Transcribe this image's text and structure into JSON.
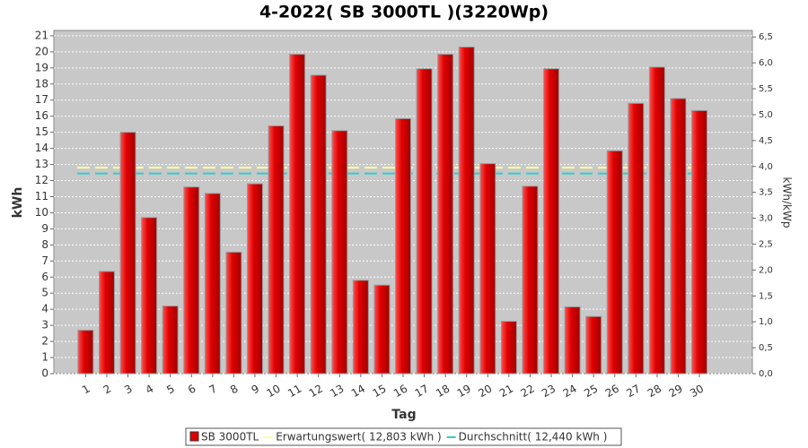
{
  "chart_data": {
    "type": "bar",
    "title": "4-2022( SB 3000TL )(3220Wp)",
    "x_label": "Tag",
    "y_label": "kWh",
    "y2_label": "kWh/kWp",
    "categories": [
      null,
      "1",
      "2",
      "3",
      "4",
      "5",
      "6",
      "7",
      "8",
      "9",
      "10",
      "11",
      "12",
      "13",
      "14",
      "15",
      "16",
      "17",
      "18",
      "19",
      "20",
      "21",
      "22",
      "23",
      "24",
      "25",
      "26",
      "27",
      "28",
      "29",
      "30",
      null,
      null
    ],
    "series": [
      {
        "name": "SB 3000TL",
        "color": "#e00000",
        "values": [
          null,
          2.7,
          6.35,
          15.0,
          9.7,
          4.2,
          11.6,
          11.2,
          7.55,
          11.8,
          15.4,
          19.85,
          18.55,
          15.1,
          5.8,
          5.5,
          15.85,
          18.95,
          19.85,
          20.3,
          13.05,
          3.25,
          11.65,
          18.95,
          4.15,
          3.55,
          13.85,
          16.8,
          19.05,
          17.1,
          16.35,
          null,
          null
        ]
      }
    ],
    "lines": [
      {
        "name": "Erwartungswert( 12,803 kWh )",
        "color": "#ffff99",
        "value": 12.803
      },
      {
        "name": "Durchschnitt( 12,440 kWh )",
        "color": "#33cccc",
        "value": 12.44
      }
    ],
    "ylim": [
      0,
      21.33
    ],
    "yticks": [
      0,
      1,
      2,
      3,
      4,
      5,
      6,
      7,
      8,
      9,
      10,
      11,
      12,
      13,
      14,
      15,
      16,
      17,
      18,
      19,
      20,
      21
    ],
    "y2lim": [
      0,
      6.625
    ],
    "y2ticks": [
      {
        "value": 0,
        "label": "0,0"
      },
      {
        "value": 0.5,
        "label": "0,5"
      },
      {
        "value": 1,
        "label": "1,0"
      },
      {
        "value": 1.5,
        "label": "1,5"
      },
      {
        "value": 2,
        "label": "2,0"
      },
      {
        "value": 2.5,
        "label": "2,5"
      },
      {
        "value": 3,
        "label": "3,0"
      },
      {
        "value": 3.5,
        "label": "3,5"
      },
      {
        "value": 4,
        "label": "4,0"
      },
      {
        "value": 4.5,
        "label": "4,5"
      },
      {
        "value": 5,
        "label": "5,0"
      },
      {
        "value": 5.5,
        "label": "5,5"
      },
      {
        "value": 6,
        "label": "6,0"
      },
      {
        "value": 6.5,
        "label": "6,5"
      }
    ],
    "grid": true
  }
}
